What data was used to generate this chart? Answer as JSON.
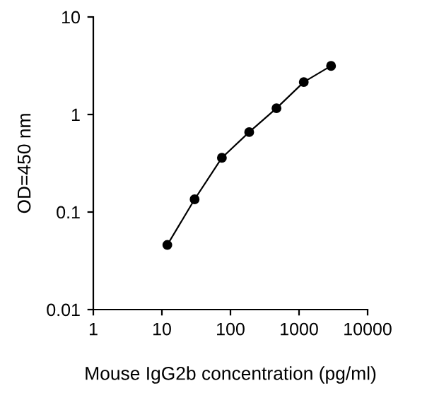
{
  "chart_data": {
    "type": "line",
    "xlabel": "Mouse IgG2b concentration (pg/ml)",
    "ylabel": "OD=450 nm",
    "x": [
      12,
      30,
      75,
      187.5,
      469,
      1172,
      2930
    ],
    "series": [
      {
        "color": "#000000",
        "values": [
          0.046,
          0.135,
          0.36,
          0.66,
          1.16,
          2.15,
          3.15
        ]
      }
    ],
    "log": "xy",
    "marker": "circle",
    "line_style": "solid",
    "grid": false,
    "legend": false,
    "xlim": [
      1,
      10000
    ],
    "xticks": [
      1,
      10,
      100,
      1000,
      10000
    ],
    "ylim": [
      0.01,
      10
    ],
    "yticks": [
      0.01,
      0.1,
      1,
      10
    ]
  }
}
